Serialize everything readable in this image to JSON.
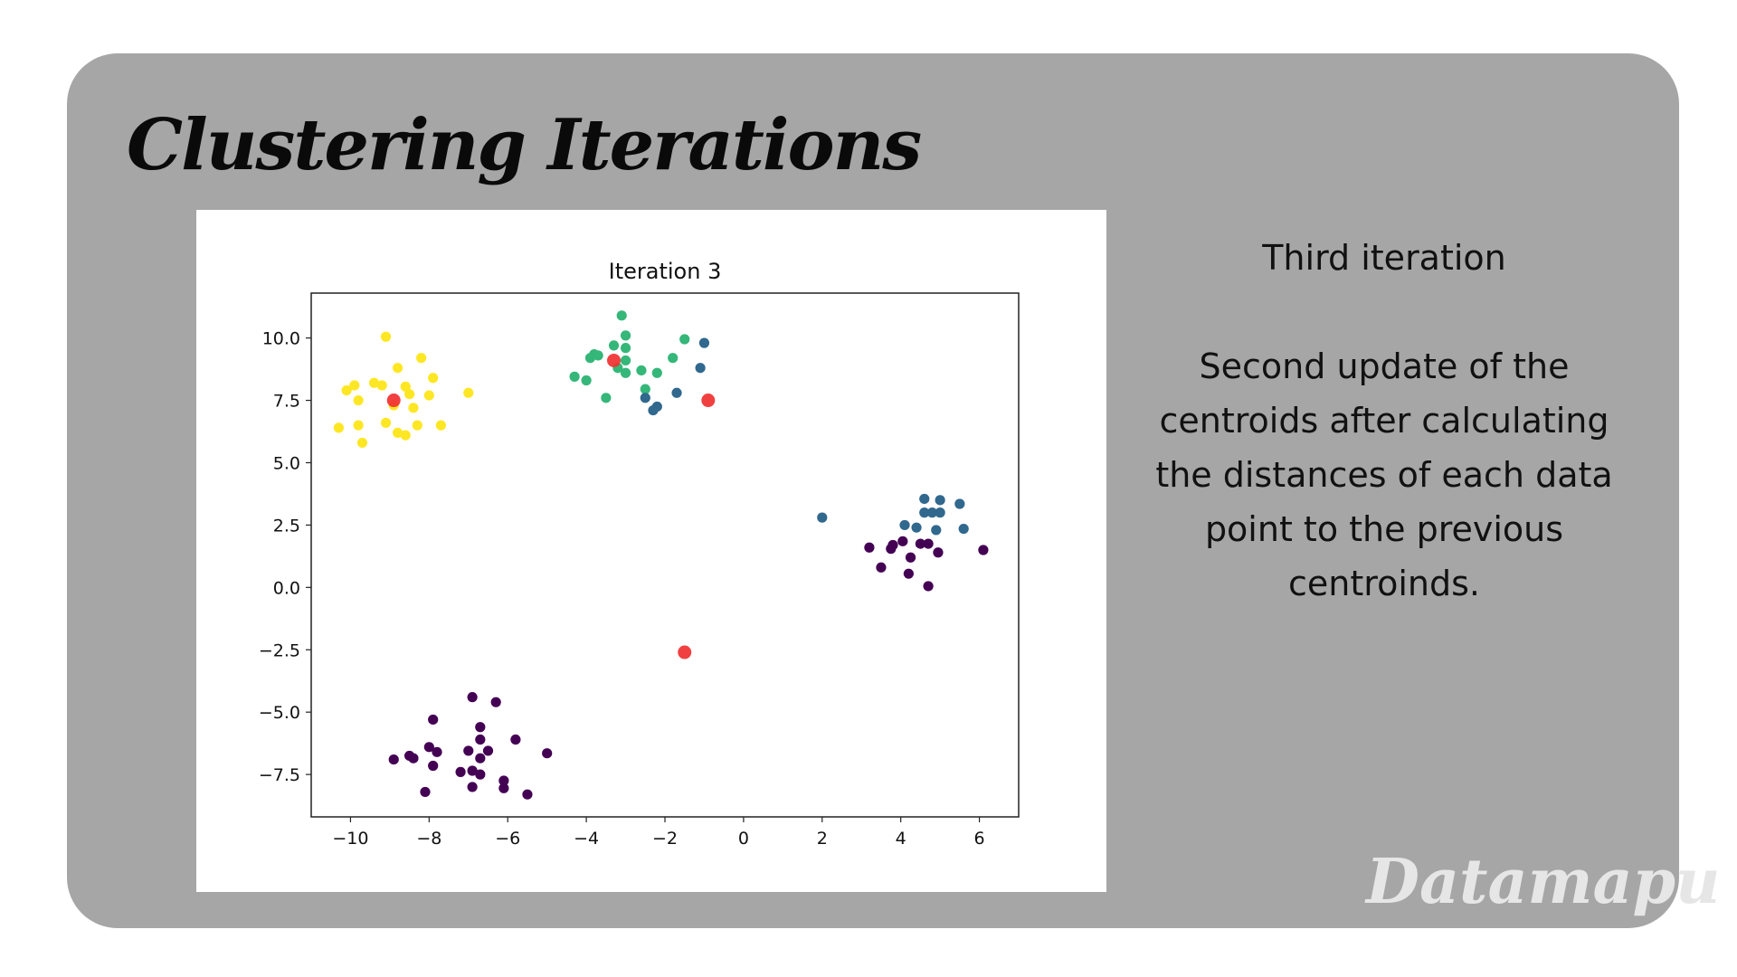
{
  "slide": {
    "title": "Clustering Iterations",
    "subtitle": "Third iteration",
    "description": "Second update of the centroids after calculating the distances of each data point to the previous centroinds.",
    "watermark": "Datamapu"
  },
  "colors": {
    "panel": "#a6a6a6",
    "cluster_0": "#440154",
    "cluster_1": "#31688e",
    "cluster_2": "#35b779",
    "cluster_3": "#fde725",
    "centroid": "#f03030"
  },
  "chart_data": {
    "type": "scatter",
    "title": "Iteration 3",
    "xlabel": "",
    "ylabel": "",
    "xlim": [
      -11,
      7
    ],
    "ylim": [
      -9.2,
      11.8
    ],
    "xticks": [
      -10,
      -8,
      -6,
      -4,
      -2,
      0,
      2,
      4,
      6
    ],
    "xtick_labels": [
      "−10",
      "−8",
      "−6",
      "−4",
      "−2",
      "0",
      "2",
      "4",
      "6"
    ],
    "yticks": [
      10.0,
      7.5,
      5.0,
      2.5,
      0.0,
      -2.5,
      -5.0,
      -7.5
    ],
    "ytick_labels": [
      "10.0",
      "7.5",
      "5.0",
      "2.5",
      "0.0",
      "−2.5",
      "−5.0",
      "−7.5"
    ],
    "grid": false,
    "series": [
      {
        "color": "#fde725",
        "points": [
          [
            -9.1,
            10.05
          ],
          [
            -8.2,
            9.2
          ],
          [
            -8.8,
            8.8
          ],
          [
            -7.9,
            8.4
          ],
          [
            -9.2,
            8.1
          ],
          [
            -9.9,
            8.1
          ],
          [
            -10.1,
            7.9
          ],
          [
            -9.4,
            8.2
          ],
          [
            -8.6,
            8.05
          ],
          [
            -8.5,
            7.75
          ],
          [
            -8.0,
            7.7
          ],
          [
            -9.8,
            7.5
          ],
          [
            -8.9,
            7.3
          ],
          [
            -8.4,
            7.2
          ],
          [
            -7.0,
            7.8
          ],
          [
            -10.3,
            6.4
          ],
          [
            -9.8,
            6.5
          ],
          [
            -9.1,
            6.6
          ],
          [
            -8.3,
            6.5
          ],
          [
            -7.7,
            6.5
          ],
          [
            -8.8,
            6.2
          ],
          [
            -8.6,
            6.1
          ],
          [
            -9.7,
            5.8
          ]
        ]
      },
      {
        "color": "#35b779",
        "points": [
          [
            -3.1,
            10.9
          ],
          [
            -3.0,
            10.1
          ],
          [
            -1.5,
            9.95
          ],
          [
            -3.3,
            9.7
          ],
          [
            -3.0,
            9.6
          ],
          [
            -3.8,
            9.35
          ],
          [
            -3.7,
            9.3
          ],
          [
            -3.9,
            9.2
          ],
          [
            -3.0,
            9.1
          ],
          [
            -1.8,
            9.2
          ],
          [
            -3.2,
            8.8
          ],
          [
            -2.6,
            8.7
          ],
          [
            -2.2,
            8.6
          ],
          [
            -3.0,
            8.6
          ],
          [
            -4.3,
            8.45
          ],
          [
            -4.0,
            8.3
          ],
          [
            -2.5,
            7.95
          ],
          [
            -3.5,
            7.6
          ]
        ]
      },
      {
        "color": "#31688e",
        "points": [
          [
            -1.0,
            9.8
          ],
          [
            -1.1,
            8.8
          ],
          [
            -1.7,
            7.8
          ],
          [
            -2.5,
            7.6
          ],
          [
            -2.2,
            7.25
          ],
          [
            -2.3,
            7.1
          ],
          [
            2.0,
            2.8
          ],
          [
            4.6,
            3.55
          ],
          [
            5.0,
            3.5
          ],
          [
            5.5,
            3.35
          ],
          [
            4.6,
            3.0
          ],
          [
            4.8,
            3.0
          ],
          [
            5.0,
            3.0
          ],
          [
            4.1,
            2.5
          ],
          [
            4.4,
            2.4
          ],
          [
            4.9,
            2.3
          ],
          [
            5.6,
            2.35
          ]
        ]
      },
      {
        "color": "#440154",
        "points": [
          [
            3.2,
            1.6
          ],
          [
            3.8,
            1.7
          ],
          [
            4.05,
            1.85
          ],
          [
            3.75,
            1.55
          ],
          [
            4.5,
            1.75
          ],
          [
            4.7,
            1.75
          ],
          [
            4.25,
            1.2
          ],
          [
            4.95,
            1.4
          ],
          [
            6.1,
            1.5
          ],
          [
            3.5,
            0.8
          ],
          [
            4.2,
            0.55
          ],
          [
            4.7,
            0.05
          ],
          [
            -6.9,
            -4.4
          ],
          [
            -6.3,
            -4.6
          ],
          [
            -7.9,
            -5.3
          ],
          [
            -6.7,
            -5.6
          ],
          [
            -6.7,
            -6.1
          ],
          [
            -5.8,
            -6.1
          ],
          [
            -8.0,
            -6.4
          ],
          [
            -7.0,
            -6.55
          ],
          [
            -6.5,
            -6.55
          ],
          [
            -7.8,
            -6.6
          ],
          [
            -5.0,
            -6.65
          ],
          [
            -6.7,
            -6.85
          ],
          [
            -8.5,
            -6.75
          ],
          [
            -8.9,
            -6.9
          ],
          [
            -8.4,
            -6.85
          ],
          [
            -7.9,
            -7.15
          ],
          [
            -6.9,
            -7.35
          ],
          [
            -7.2,
            -7.4
          ],
          [
            -6.7,
            -7.5
          ],
          [
            -6.1,
            -7.75
          ],
          [
            -6.9,
            -8.0
          ],
          [
            -6.1,
            -8.05
          ],
          [
            -8.1,
            -8.2
          ],
          [
            -5.5,
            -8.3
          ]
        ]
      }
    ],
    "centroids": [
      [
        -8.9,
        7.5
      ],
      [
        -3.3,
        9.1
      ],
      [
        -0.9,
        7.5
      ],
      [
        -1.5,
        -2.6
      ]
    ]
  }
}
